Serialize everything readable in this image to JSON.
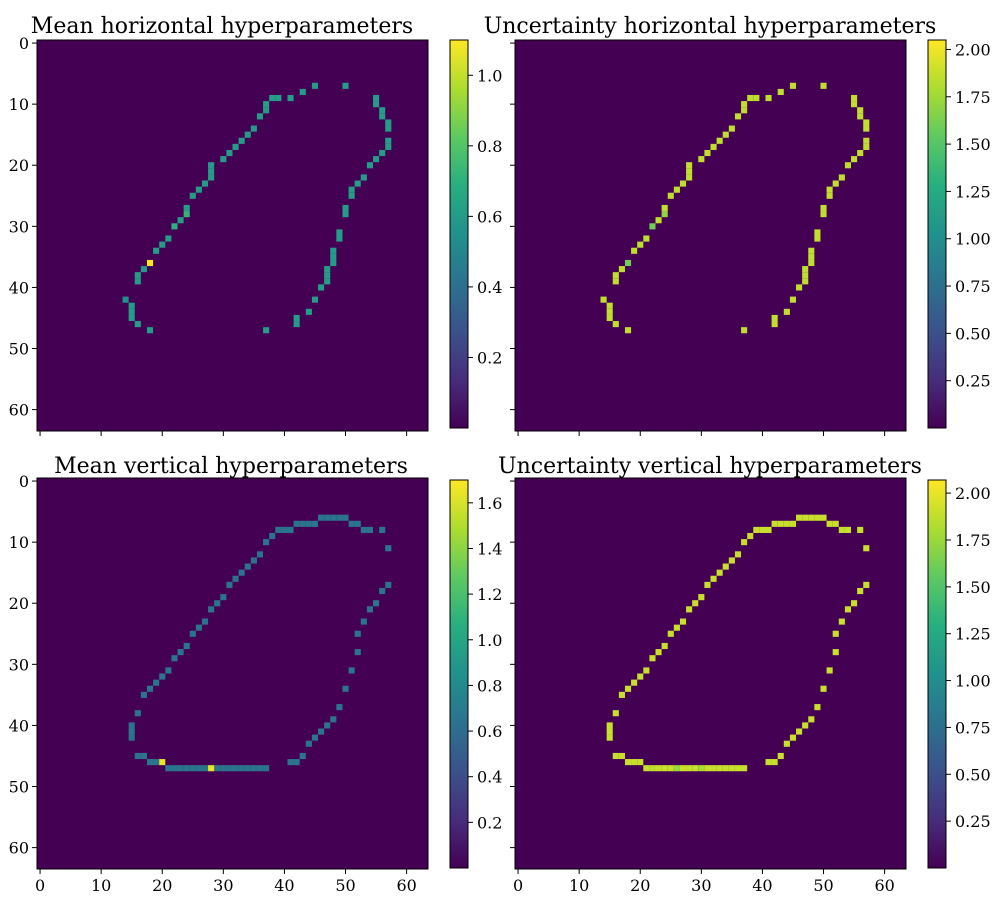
{
  "figure": {
    "background": "#ffffff",
    "colormap": "viridis",
    "background_cell_color": "#440154"
  },
  "chart_data": [
    {
      "type": "heatmap",
      "title": "Mean horizontal hyperparameters",
      "colorbar_range": [
        0.0,
        1.1
      ],
      "colorbar_ticks": [
        "0.2",
        "0.4",
        "0.6",
        "0.8",
        "1.0"
      ],
      "colorbar_tick_values": [
        0.2,
        0.4,
        0.6,
        0.8,
        1.0
      ],
      "xticks": [],
      "yticks": [
        "0",
        "10",
        "20",
        "30",
        "40",
        "50",
        "60"
      ],
      "xlim": [
        0,
        63
      ],
      "ylim": [
        0,
        63
      ],
      "background_value": 0.0,
      "default_value": 0.6,
      "cells": [
        [
          45,
          7
        ],
        [
          50,
          7
        ],
        [
          43,
          8
        ],
        [
          38,
          9
        ],
        [
          39,
          9
        ],
        [
          41,
          9
        ],
        [
          55,
          9
        ],
        [
          37,
          10
        ],
        [
          55,
          10
        ],
        [
          37,
          11
        ],
        [
          56,
          11
        ],
        [
          36,
          12
        ],
        [
          56,
          12
        ],
        [
          57,
          13
        ],
        [
          57,
          14
        ],
        [
          35,
          14
        ],
        [
          34,
          15
        ],
        [
          33,
          16
        ],
        [
          57,
          16
        ],
        [
          32,
          17
        ],
        [
          57,
          17
        ],
        [
          31,
          18
        ],
        [
          56,
          18
        ],
        [
          30,
          19
        ],
        [
          55,
          19
        ],
        [
          28,
          20
        ],
        [
          54,
          20
        ],
        [
          28,
          21
        ],
        [
          28,
          22
        ],
        [
          53,
          22
        ],
        [
          27,
          23
        ],
        [
          52,
          23
        ],
        [
          26,
          24
        ],
        [
          51,
          24
        ],
        [
          25,
          25
        ],
        [
          51,
          25
        ],
        [
          24,
          27
        ],
        [
          50,
          27
        ],
        [
          24,
          28
        ],
        [
          50,
          28
        ],
        [
          23,
          29
        ],
        [
          22,
          30
        ],
        [
          49,
          31
        ],
        [
          21,
          32
        ],
        [
          49,
          32
        ],
        [
          20,
          33
        ],
        [
          19,
          34
        ],
        [
          48,
          34
        ],
        [
          48,
          35
        ],
        [
          18,
          36
        ],
        [
          48,
          36
        ],
        [
          17,
          37
        ],
        [
          47,
          37
        ],
        [
          16,
          38
        ],
        [
          47,
          38
        ],
        [
          16,
          39
        ],
        [
          47,
          39
        ],
        [
          46,
          40
        ],
        [
          45,
          42
        ],
        [
          15,
          43
        ],
        [
          15,
          44
        ],
        [
          44,
          44
        ],
        [
          15,
          45
        ],
        [
          42,
          45
        ],
        [
          16,
          46
        ],
        [
          42,
          46
        ],
        [
          18,
          47
        ],
        [
          37,
          47
        ]
      ],
      "special": [
        {
          "x": 18,
          "y": 36,
          "value": 1.1
        },
        {
          "x": 24,
          "y": 28,
          "value": 0.72
        },
        {
          "x": 14,
          "y": 42,
          "value": 0.55
        },
        {
          "x": 22,
          "y": 30,
          "value": 0.7
        }
      ]
    },
    {
      "type": "heatmap",
      "title": "Uncertainty horizontal hyperparameters",
      "colorbar_range": [
        0.0,
        2.05
      ],
      "colorbar_ticks": [
        "0.25",
        "0.50",
        "0.75",
        "1.00",
        "1.25",
        "1.50",
        "1.75",
        "2.00"
      ],
      "colorbar_tick_values": [
        0.25,
        0.5,
        0.75,
        1.0,
        1.25,
        1.5,
        1.75,
        2.0
      ],
      "xticks": [],
      "yticks": [],
      "xlim": [
        0,
        63
      ],
      "ylim": [
        0,
        63
      ],
      "background_value": 0.0,
      "default_value": 1.85,
      "cells": [
        [
          45,
          7
        ],
        [
          50,
          7
        ],
        [
          43,
          8
        ],
        [
          38,
          9
        ],
        [
          39,
          9
        ],
        [
          41,
          9
        ],
        [
          55,
          9
        ],
        [
          37,
          10
        ],
        [
          55,
          10
        ],
        [
          37,
          11
        ],
        [
          56,
          11
        ],
        [
          36,
          12
        ],
        [
          56,
          12
        ],
        [
          57,
          13
        ],
        [
          57,
          14
        ],
        [
          35,
          14
        ],
        [
          34,
          15
        ],
        [
          33,
          16
        ],
        [
          57,
          16
        ],
        [
          32,
          17
        ],
        [
          57,
          17
        ],
        [
          31,
          18
        ],
        [
          56,
          18
        ],
        [
          30,
          19
        ],
        [
          55,
          19
        ],
        [
          28,
          20
        ],
        [
          54,
          20
        ],
        [
          28,
          21
        ],
        [
          28,
          22
        ],
        [
          53,
          22
        ],
        [
          27,
          23
        ],
        [
          52,
          23
        ],
        [
          26,
          24
        ],
        [
          51,
          24
        ],
        [
          25,
          25
        ],
        [
          51,
          25
        ],
        [
          24,
          27
        ],
        [
          50,
          27
        ],
        [
          24,
          28
        ],
        [
          50,
          28
        ],
        [
          23,
          29
        ],
        [
          22,
          30
        ],
        [
          49,
          31
        ],
        [
          21,
          32
        ],
        [
          49,
          32
        ],
        [
          20,
          33
        ],
        [
          19,
          34
        ],
        [
          48,
          34
        ],
        [
          48,
          35
        ],
        [
          18,
          36
        ],
        [
          48,
          36
        ],
        [
          17,
          37
        ],
        [
          47,
          37
        ],
        [
          16,
          38
        ],
        [
          47,
          38
        ],
        [
          16,
          39
        ],
        [
          47,
          39
        ],
        [
          46,
          40
        ],
        [
          45,
          42
        ],
        [
          14,
          42
        ],
        [
          15,
          43
        ],
        [
          15,
          44
        ],
        [
          44,
          44
        ],
        [
          15,
          45
        ],
        [
          42,
          45
        ],
        [
          16,
          46
        ],
        [
          42,
          46
        ],
        [
          18,
          47
        ],
        [
          37,
          47
        ]
      ],
      "special": [
        {
          "x": 18,
          "y": 36,
          "value": 1.6
        },
        {
          "x": 22,
          "y": 30,
          "value": 1.6
        },
        {
          "x": 24,
          "y": 28,
          "value": 1.7
        }
      ]
    },
    {
      "type": "heatmap",
      "title": "Mean vertical hyperparameters",
      "colorbar_range": [
        0.0,
        1.7
      ],
      "colorbar_ticks": [
        "0.2",
        "0.4",
        "0.6",
        "0.8",
        "1.0",
        "1.2",
        "1.4",
        "1.6"
      ],
      "colorbar_tick_values": [
        0.2,
        0.4,
        0.6,
        0.8,
        1.0,
        1.2,
        1.4,
        1.6
      ],
      "xticks": [],
      "yticks": [
        "0",
        "10",
        "20",
        "30",
        "40",
        "50",
        "60"
      ],
      "xlim": [
        0,
        63
      ],
      "ylim": [
        0,
        63
      ],
      "background_value": 0.0,
      "default_value": 0.65,
      "cells": [
        [
          46,
          6
        ],
        [
          47,
          6
        ],
        [
          48,
          6
        ],
        [
          49,
          6
        ],
        [
          50,
          6
        ],
        [
          42,
          7
        ],
        [
          43,
          7
        ],
        [
          44,
          7
        ],
        [
          45,
          7
        ],
        [
          51,
          7
        ],
        [
          52,
          7
        ],
        [
          39,
          8
        ],
        [
          40,
          8
        ],
        [
          41,
          8
        ],
        [
          53,
          8
        ],
        [
          54,
          8
        ],
        [
          56,
          8
        ],
        [
          38,
          9
        ],
        [
          37,
          10
        ],
        [
          57,
          11
        ],
        [
          36,
          12
        ],
        [
          35,
          13
        ],
        [
          34,
          14
        ],
        [
          33,
          15
        ],
        [
          32,
          16
        ],
        [
          57,
          17
        ],
        [
          31,
          17
        ],
        [
          56,
          18
        ],
        [
          30,
          19
        ],
        [
          29,
          20
        ],
        [
          55,
          20
        ],
        [
          28,
          21
        ],
        [
          54,
          21
        ],
        [
          27,
          23
        ],
        [
          53,
          23
        ],
        [
          26,
          24
        ],
        [
          25,
          25
        ],
        [
          52,
          25
        ],
        [
          24,
          27
        ],
        [
          23,
          28
        ],
        [
          52,
          28
        ],
        [
          22,
          29
        ],
        [
          21,
          31
        ],
        [
          51,
          31
        ],
        [
          20,
          32
        ],
        [
          19,
          33
        ],
        [
          18,
          34
        ],
        [
          50,
          34
        ],
        [
          17,
          35
        ],
        [
          49,
          37
        ],
        [
          16,
          38
        ],
        [
          48,
          39
        ],
        [
          15,
          40
        ],
        [
          47,
          40
        ],
        [
          15,
          41
        ],
        [
          46,
          41
        ],
        [
          15,
          42
        ],
        [
          45,
          42
        ],
        [
          44,
          43
        ],
        [
          16,
          45
        ],
        [
          17,
          45
        ],
        [
          43,
          45
        ],
        [
          18,
          46
        ],
        [
          19,
          46
        ],
        [
          41,
          46
        ],
        [
          42,
          46
        ],
        [
          21,
          47
        ],
        [
          22,
          47
        ],
        [
          23,
          47
        ],
        [
          24,
          47
        ],
        [
          25,
          47
        ],
        [
          26,
          47
        ],
        [
          27,
          47
        ],
        [
          29,
          47
        ],
        [
          30,
          47
        ],
        [
          31,
          47
        ],
        [
          32,
          47
        ],
        [
          33,
          47
        ],
        [
          34,
          47
        ],
        [
          35,
          47
        ],
        [
          36,
          47
        ],
        [
          37,
          47
        ]
      ],
      "special": [
        {
          "x": 20,
          "y": 46,
          "value": 1.65
        },
        {
          "x": 28,
          "y": 47,
          "value": 1.65
        }
      ]
    },
    {
      "type": "heatmap",
      "title": "Uncertainty vertical hyperparameters",
      "colorbar_range": [
        0.0,
        2.07
      ],
      "colorbar_ticks": [
        "0.25",
        "0.50",
        "0.75",
        "1.00",
        "1.25",
        "1.50",
        "1.75",
        "2.00"
      ],
      "colorbar_tick_values": [
        0.25,
        0.5,
        0.75,
        1.0,
        1.25,
        1.5,
        1.75,
        2.0
      ],
      "xticks": [
        "0",
        "10",
        "20",
        "30",
        "40",
        "50",
        "60"
      ],
      "yticks": [],
      "xlim": [
        0,
        63
      ],
      "ylim": [
        0,
        63
      ],
      "background_value": 0.0,
      "default_value": 1.9,
      "cells": [
        [
          46,
          6
        ],
        [
          47,
          6
        ],
        [
          48,
          6
        ],
        [
          49,
          6
        ],
        [
          50,
          6
        ],
        [
          42,
          7
        ],
        [
          43,
          7
        ],
        [
          44,
          7
        ],
        [
          45,
          7
        ],
        [
          51,
          7
        ],
        [
          52,
          7
        ],
        [
          39,
          8
        ],
        [
          40,
          8
        ],
        [
          41,
          8
        ],
        [
          53,
          8
        ],
        [
          54,
          8
        ],
        [
          56,
          8
        ],
        [
          38,
          9
        ],
        [
          37,
          10
        ],
        [
          57,
          11
        ],
        [
          36,
          12
        ],
        [
          35,
          13
        ],
        [
          34,
          14
        ],
        [
          33,
          15
        ],
        [
          32,
          16
        ],
        [
          57,
          17
        ],
        [
          31,
          17
        ],
        [
          56,
          18
        ],
        [
          30,
          19
        ],
        [
          29,
          20
        ],
        [
          55,
          20
        ],
        [
          28,
          21
        ],
        [
          54,
          21
        ],
        [
          27,
          23
        ],
        [
          53,
          23
        ],
        [
          26,
          24
        ],
        [
          25,
          25
        ],
        [
          52,
          25
        ],
        [
          24,
          27
        ],
        [
          23,
          28
        ],
        [
          52,
          28
        ],
        [
          22,
          29
        ],
        [
          21,
          31
        ],
        [
          51,
          31
        ],
        [
          20,
          32
        ],
        [
          19,
          33
        ],
        [
          18,
          34
        ],
        [
          50,
          34
        ],
        [
          17,
          35
        ],
        [
          49,
          37
        ],
        [
          16,
          38
        ],
        [
          48,
          39
        ],
        [
          15,
          40
        ],
        [
          47,
          40
        ],
        [
          15,
          41
        ],
        [
          46,
          41
        ],
        [
          15,
          42
        ],
        [
          45,
          42
        ],
        [
          44,
          43
        ],
        [
          16,
          45
        ],
        [
          17,
          45
        ],
        [
          43,
          45
        ],
        [
          18,
          46
        ],
        [
          19,
          46
        ],
        [
          20,
          46
        ],
        [
          41,
          46
        ],
        [
          42,
          46
        ],
        [
          21,
          47
        ],
        [
          22,
          47
        ],
        [
          23,
          47
        ],
        [
          24,
          47
        ],
        [
          25,
          47
        ],
        [
          26,
          47
        ],
        [
          27,
          47
        ],
        [
          28,
          47
        ],
        [
          29,
          47
        ],
        [
          30,
          47
        ],
        [
          31,
          47
        ],
        [
          32,
          47
        ],
        [
          33,
          47
        ],
        [
          34,
          47
        ],
        [
          35,
          47
        ],
        [
          36,
          47
        ],
        [
          37,
          47
        ]
      ],
      "special": [
        {
          "x": 26,
          "y": 47,
          "value": 1.75
        },
        {
          "x": 30,
          "y": 47,
          "value": 1.8
        },
        {
          "x": 22,
          "y": 47,
          "value": 1.85
        }
      ]
    }
  ],
  "shared_xticks": [
    "0",
    "10",
    "20",
    "30",
    "40",
    "50",
    "60"
  ],
  "shared_xtick_values": [
    0,
    10,
    20,
    30,
    40,
    50,
    60
  ],
  "shared_ytick_values": [
    0,
    10,
    20,
    30,
    40,
    50,
    60
  ]
}
